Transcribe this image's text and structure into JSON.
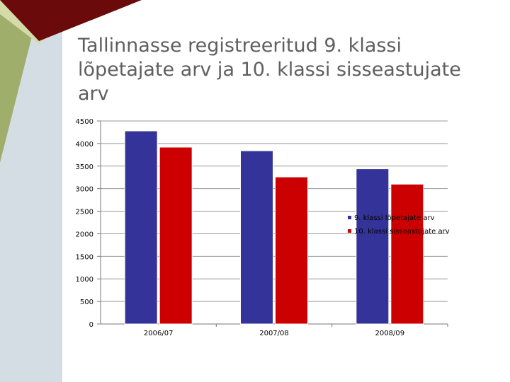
{
  "slide": {
    "title": "Tallinnasse registreeritud 9. klassi lõpetajate arv ja 10. klassi sisseastujate arv"
  },
  "theme": {
    "accent_dark_red": "#6b0a0a",
    "accent_olive": "#9fae6a",
    "accent_light_olive": "#d5dba8",
    "accent_pale_blue": "#d4dde4"
  },
  "chart_data": {
    "type": "bar",
    "categories": [
      "2006/07",
      "2007/08",
      "2008/09"
    ],
    "series": [
      {
        "name": "9. klassi lõpetajate arv",
        "values": [
          4280,
          3840,
          3440
        ],
        "color": "#333399"
      },
      {
        "name": "10. klassi sisseastujate arv",
        "values": [
          3920,
          3260,
          3100
        ],
        "color": "#cc0000"
      }
    ],
    "ylim": [
      0,
      4500
    ],
    "yticks": [
      0,
      500,
      1000,
      1500,
      2000,
      2500,
      3000,
      3500,
      4000,
      4500
    ],
    "grid": true,
    "legend": "right",
    "title": "",
    "xlabel": "",
    "ylabel": ""
  }
}
